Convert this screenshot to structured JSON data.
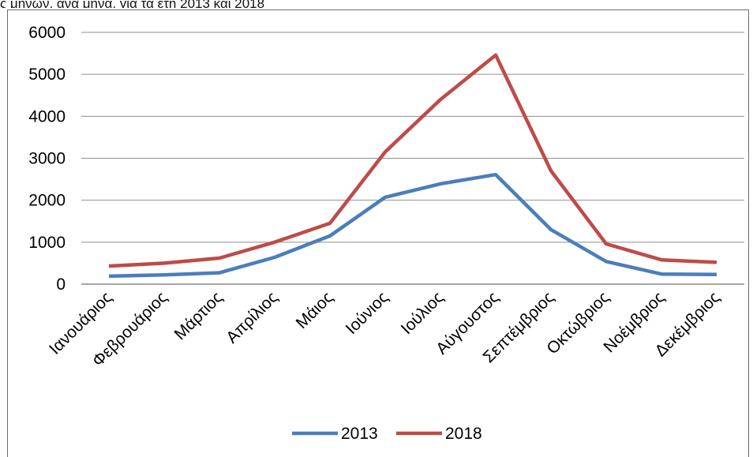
{
  "header": {
    "caption_fragment": "ς μηνών, ανά μήνα, για τα έτη 2013 και 2018"
  },
  "chart_data": {
    "type": "line",
    "categories": [
      "Ιανουάριος",
      "Φεβρουάριος",
      "Μάρτιος",
      "Απρίλιος",
      "Μάιος",
      "Ιούνιος",
      "Ιούλιος",
      "Αύγουστος",
      "Σεπτέμβριος",
      "Οκτώβριος",
      "Νοέμβριος",
      "Δεκέμβριος"
    ],
    "series": [
      {
        "name": "2013",
        "color": "#4a7ebb",
        "values": [
          190,
          220,
          270,
          640,
          1150,
          2070,
          2390,
          2610,
          1300,
          540,
          240,
          230
        ]
      },
      {
        "name": "2018",
        "color": "#be4b48",
        "values": [
          430,
          500,
          620,
          1000,
          1450,
          3150,
          4400,
          5460,
          2700,
          960,
          580,
          520
        ]
      }
    ],
    "ylim": [
      0,
      6000
    ],
    "yticks": [
      0,
      1000,
      2000,
      3000,
      4000,
      5000,
      6000
    ],
    "grid": true,
    "legend": "bottom",
    "title": "",
    "xlabel": "",
    "ylabel": ""
  }
}
